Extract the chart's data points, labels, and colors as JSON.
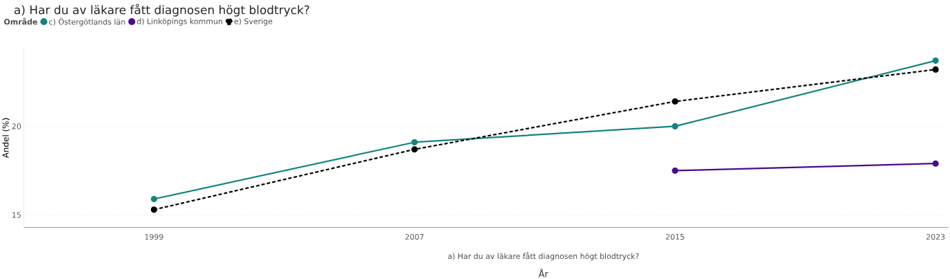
{
  "chart_data": {
    "type": "line",
    "title": "a) Har du av läkare fått diagnosen högt blodtryck?",
    "legend_title": "Område",
    "xlabel": "År",
    "ylabel": "Andel (%)",
    "annotations": [
      "a) Har du av läkare fått diagnosen högt blodtryck?"
    ],
    "x": [
      1999,
      2007,
      2015,
      2023
    ],
    "series": [
      {
        "name": "c) Östergötlands län",
        "color": "#148482",
        "values": [
          15.9,
          19.1,
          20.0,
          23.7
        ],
        "line_style": "solid"
      },
      {
        "name": "d) Linköpings kommun",
        "color": "#4a0b8c",
        "values": [
          null,
          null,
          17.5,
          17.9
        ],
        "line_style": "solid"
      },
      {
        "name": "e) Sverige",
        "color": "#000000",
        "values": [
          15.3,
          18.7,
          21.4,
          23.2
        ],
        "line_style": "dashed"
      }
    ],
    "xlim": [
      1995,
      2023.4
    ],
    "xticks": [
      1999,
      2007,
      2015,
      2023
    ],
    "ylim": [
      14.3,
      24.4
    ],
    "yticks": [
      15,
      20
    ],
    "grid": "y",
    "legend": "top left",
    "marker": "circle"
  }
}
